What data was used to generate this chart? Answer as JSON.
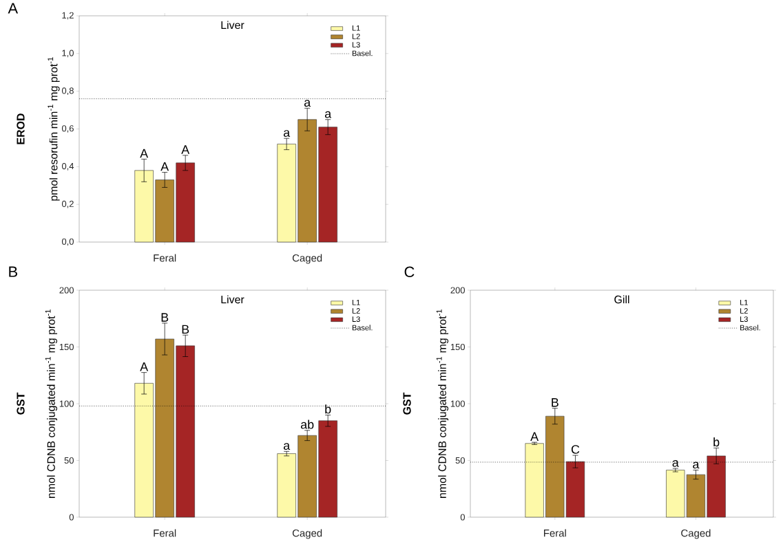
{
  "chart_data": [
    {
      "type": "bar",
      "title": "Liver",
      "ylabel": "pmol resorufin min$^{-1}$ mg prot$^{-1}$",
      "categories": [
        "Feral",
        "Caged"
      ],
      "series": [
        {
          "name": "L1",
          "color": "#fdf9a8",
          "values": [
            0.38,
            0.52
          ],
          "errors": [
            0.06,
            0.03
          ]
        },
        {
          "name": "L2",
          "color": "#b08530",
          "values": [
            0.33,
            0.65
          ],
          "errors": [
            0.04,
            0.06
          ]
        },
        {
          "name": "L3",
          "color": "#a52525",
          "values": [
            0.42,
            0.61
          ],
          "errors": [
            0.04,
            0.04
          ]
        }
      ],
      "ylim": [
        0,
        1.2
      ],
      "yticks": [
        {
          "value": 0,
          "label": "0,0"
        },
        {
          "value": 0.2,
          "label": "0,2"
        },
        {
          "value": 0.4,
          "label": "0,4"
        },
        {
          "value": 0.6,
          "label": "0,6"
        },
        {
          "value": 0.8,
          "label": "0,8"
        },
        {
          "value": 1.0,
          "label": "1,0"
        },
        {
          "value": 1.2,
          "label": "1,2"
        }
      ],
      "ref_lines": [
        {
          "axis": "y",
          "value": 0.76,
          "label": "Basel.",
          "line_style": "dotted"
        }
      ],
      "legend": "top right",
      "annotations": [
        "A",
        "EROD",
        "A",
        "A",
        "A",
        "a",
        "a",
        "a"
      ]
    },
    {
      "type": "bar",
      "title": "Liver",
      "ylabel": "nmol CDNB conjugated min$^{-1}$ mg prot$^{-1}$",
      "categories": [
        "Feral",
        "Caged"
      ],
      "series": [
        {
          "name": "L1",
          "color": "#fdf9a8",
          "values": [
            118,
            56
          ],
          "errors": [
            9.5,
            2
          ]
        },
        {
          "name": "L2",
          "color": "#b08530",
          "values": [
            157,
            72
          ],
          "errors": [
            14,
            4.5
          ]
        },
        {
          "name": "L3",
          "color": "#a52525",
          "values": [
            151,
            85
          ],
          "errors": [
            9.5,
            5
          ]
        }
      ],
      "ylim": [
        0,
        200
      ],
      "yticks": [
        0,
        50,
        100,
        150,
        200
      ],
      "ref_lines": [
        {
          "axis": "y",
          "value": 98,
          "label": "Basel.",
          "line_style": "dotted"
        }
      ],
      "legend": "top right",
      "annotations": [
        "B",
        "GST",
        "A",
        "B",
        "B",
        "a",
        "ab",
        "b"
      ]
    },
    {
      "type": "bar",
      "title": "Gill",
      "ylabel": "nmol CDNB conjugated min$^{-1}$ mg prot$^{-1}$",
      "categories": [
        "Feral",
        "Caged"
      ],
      "series": [
        {
          "name": "L1",
          "color": "#fdf9a8",
          "values": [
            65,
            41.5
          ],
          "errors": [
            1,
            1.5
          ]
        },
        {
          "name": "L2",
          "color": "#b08530",
          "values": [
            89,
            37.5
          ],
          "errors": [
            7,
            4
          ]
        },
        {
          "name": "L3",
          "color": "#a52525",
          "values": [
            49,
            54
          ],
          "errors": [
            5.5,
            7
          ]
        }
      ],
      "ylim": [
        0,
        200
      ],
      "yticks": [
        0,
        50,
        100,
        150,
        200
      ],
      "ref_lines": [
        {
          "axis": "y",
          "value": 48.5,
          "label": "Basel.",
          "line_style": "dotted"
        }
      ],
      "legend": "top right",
      "annotations": [
        "C",
        "GST",
        "A",
        "B",
        "C",
        "a",
        "a",
        "b"
      ]
    }
  ]
}
